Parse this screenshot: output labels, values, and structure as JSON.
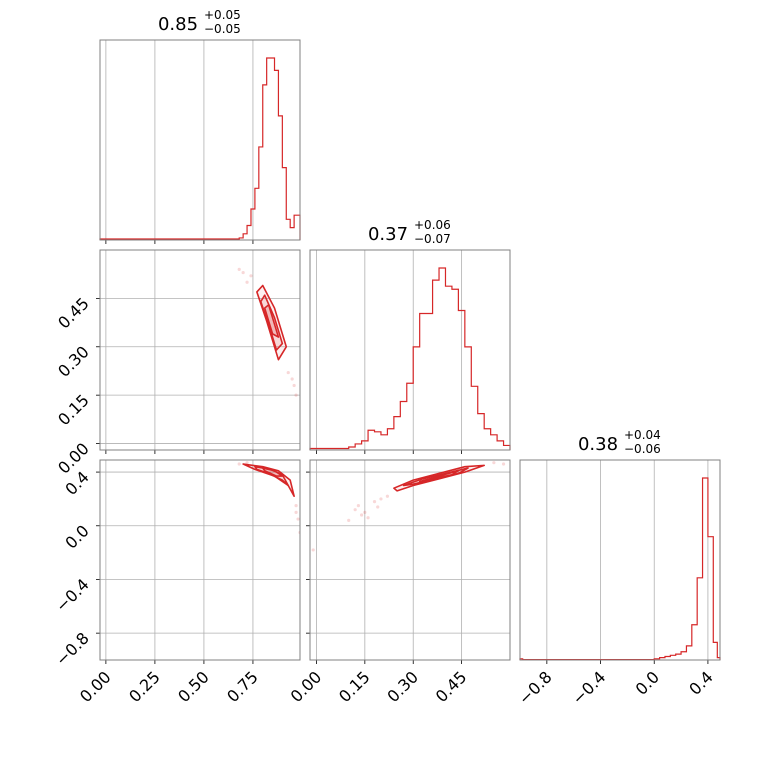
{
  "colors": {
    "series": "#d62728",
    "grid": "#b0b0b0",
    "frame": "#808080"
  },
  "chart_data": {
    "type": "corner",
    "parameters": [
      {
        "title_value": "0.85",
        "title_plus": "+0.05",
        "title_minus": "−0.05",
        "range": [
          -0.03,
          0.99
        ],
        "ticks": [
          0.0,
          0.25,
          0.5,
          0.75
        ],
        "tick_labels": [
          "0.00",
          "0.25",
          "0.50",
          "0.75"
        ]
      },
      {
        "title_value": "0.37",
        "title_plus": "+0.06",
        "title_minus": "−0.07",
        "range": [
          -0.02,
          0.6
        ],
        "ticks": [
          0.0,
          0.15,
          0.3,
          0.45
        ],
        "tick_labels": [
          "0.00",
          "0.15",
          "0.30",
          "0.45"
        ]
      },
      {
        "title_value": "0.38",
        "title_plus": "+0.04",
        "title_minus": "−0.06",
        "range": [
          -1.0,
          0.49
        ],
        "ticks": [
          -0.8,
          -0.4,
          0.0,
          0.4
        ],
        "tick_labels": [
          "−0.8",
          "−0.4",
          "0.0",
          "0.4"
        ]
      }
    ],
    "histograms": [
      {
        "param": 0,
        "edges": [
          -0.03,
          0.68,
          0.7,
          0.72,
          0.74,
          0.76,
          0.78,
          0.8,
          0.82,
          0.84,
          0.86,
          0.88,
          0.9,
          0.92,
          0.94,
          0.96,
          0.99
        ],
        "counts": [
          0.5,
          1.0,
          3,
          7,
          15,
          25,
          45,
          75,
          88,
          88,
          82,
          60,
          35,
          10,
          6,
          12
        ]
      },
      {
        "param": 1,
        "edges": [
          -0.02,
          0.1,
          0.12,
          0.14,
          0.16,
          0.18,
          0.2,
          0.22,
          0.24,
          0.26,
          0.28,
          0.3,
          0.32,
          0.34,
          0.36,
          0.38,
          0.4,
          0.42,
          0.44,
          0.46,
          0.48,
          0.5,
          0.52,
          0.54,
          0.56,
          0.58,
          0.6
        ],
        "counts": [
          1,
          2,
          4,
          6,
          13,
          12,
          10,
          14,
          22,
          32,
          44,
          68,
          90,
          90,
          112,
          120,
          108,
          106,
          92,
          68,
          42,
          24,
          14,
          10,
          6,
          3
        ]
      },
      {
        "param": 2,
        "edges": [
          -1.0,
          -0.98,
          0.0,
          0.04,
          0.08,
          0.12,
          0.16,
          0.2,
          0.24,
          0.28,
          0.32,
          0.36,
          0.4,
          0.44,
          0.47,
          0.49
        ],
        "counts": [
          1,
          0.3,
          1,
          2,
          3,
          4,
          5,
          7,
          12,
          30,
          70,
          155,
          105,
          15,
          2
        ]
      }
    ],
    "contours": [
      {
        "x_param": 0,
        "y_param": 1,
        "levels": [
          [
            [
              0.8,
              0.49
            ],
            [
              0.86,
              0.42
            ],
            [
              0.92,
              0.3
            ],
            [
              0.88,
              0.26
            ],
            [
              0.82,
              0.38
            ],
            [
              0.77,
              0.47
            ]
          ],
          [
            [
              0.81,
              0.46
            ],
            [
              0.86,
              0.39
            ],
            [
              0.9,
              0.31
            ],
            [
              0.87,
              0.29
            ],
            [
              0.83,
              0.37
            ],
            [
              0.79,
              0.44
            ]
          ],
          [
            [
              0.83,
              0.43
            ],
            [
              0.86,
              0.37
            ],
            [
              0.88,
              0.33
            ],
            [
              0.85,
              0.34
            ],
            [
              0.83,
              0.38
            ],
            [
              0.81,
              0.42
            ]
          ]
        ],
        "scatter_tail": [
          [
            0.68,
            0.54
          ],
          [
            0.72,
            0.5
          ],
          [
            0.74,
            0.52
          ],
          [
            0.93,
            0.22
          ],
          [
            0.96,
            0.18
          ],
          [
            0.97,
            0.15
          ],
          [
            0.7,
            0.53
          ],
          [
            0.95,
            0.2
          ]
        ]
      },
      {
        "x_param": 0,
        "y_param": 2,
        "levels": [
          [
            [
              0.7,
              0.46
            ],
            [
              0.8,
              0.44
            ],
            [
              0.88,
              0.41
            ],
            [
              0.94,
              0.34
            ],
            [
              0.96,
              0.22
            ],
            [
              0.93,
              0.3
            ],
            [
              0.86,
              0.37
            ],
            [
              0.76,
              0.42
            ]
          ],
          [
            [
              0.76,
              0.44
            ],
            [
              0.84,
              0.42
            ],
            [
              0.9,
              0.38
            ],
            [
              0.93,
              0.3
            ],
            [
              0.9,
              0.34
            ],
            [
              0.83,
              0.39
            ],
            [
              0.77,
              0.42
            ]
          ],
          [
            [
              0.8,
              0.43
            ],
            [
              0.86,
              0.41
            ],
            [
              0.9,
              0.37
            ],
            [
              0.87,
              0.37
            ],
            [
              0.81,
              0.41
            ]
          ]
        ],
        "scatter_tail": [
          [
            0.97,
            0.15
          ],
          [
            0.98,
            0.05
          ],
          [
            0.99,
            -0.05
          ],
          [
            0.97,
            0.1
          ],
          [
            0.68,
            0.46
          ],
          [
            0.72,
            0.47
          ]
        ]
      },
      {
        "x_param": 1,
        "y_param": 2,
        "levels": [
          [
            [
              0.24,
              0.28
            ],
            [
              0.3,
              0.34
            ],
            [
              0.38,
              0.39
            ],
            [
              0.46,
              0.44
            ],
            [
              0.52,
              0.45
            ],
            [
              0.46,
              0.4
            ],
            [
              0.38,
              0.35
            ],
            [
              0.3,
              0.3
            ],
            [
              0.25,
              0.26
            ]
          ],
          [
            [
              0.27,
              0.3
            ],
            [
              0.33,
              0.35
            ],
            [
              0.4,
              0.39
            ],
            [
              0.47,
              0.43
            ],
            [
              0.44,
              0.39
            ],
            [
              0.37,
              0.35
            ],
            [
              0.3,
              0.31
            ]
          ],
          [
            [
              0.32,
              0.33
            ],
            [
              0.38,
              0.37
            ],
            [
              0.44,
              0.41
            ],
            [
              0.42,
              0.38
            ],
            [
              0.36,
              0.35
            ]
          ]
        ],
        "scatter_tail": [
          [
            0.12,
            0.12
          ],
          [
            0.15,
            0.1
          ],
          [
            0.18,
            0.18
          ],
          [
            0.2,
            0.2
          ],
          [
            0.14,
            0.08
          ],
          [
            0.22,
            0.22
          ],
          [
            0.16,
            0.06
          ],
          [
            0.1,
            0.04
          ],
          [
            0.19,
            0.14
          ],
          [
            0.13,
            0.15
          ],
          [
            -0.01,
            -0.18
          ],
          [
            0.55,
            0.47
          ],
          [
            0.58,
            0.46
          ]
        ]
      }
    ]
  }
}
